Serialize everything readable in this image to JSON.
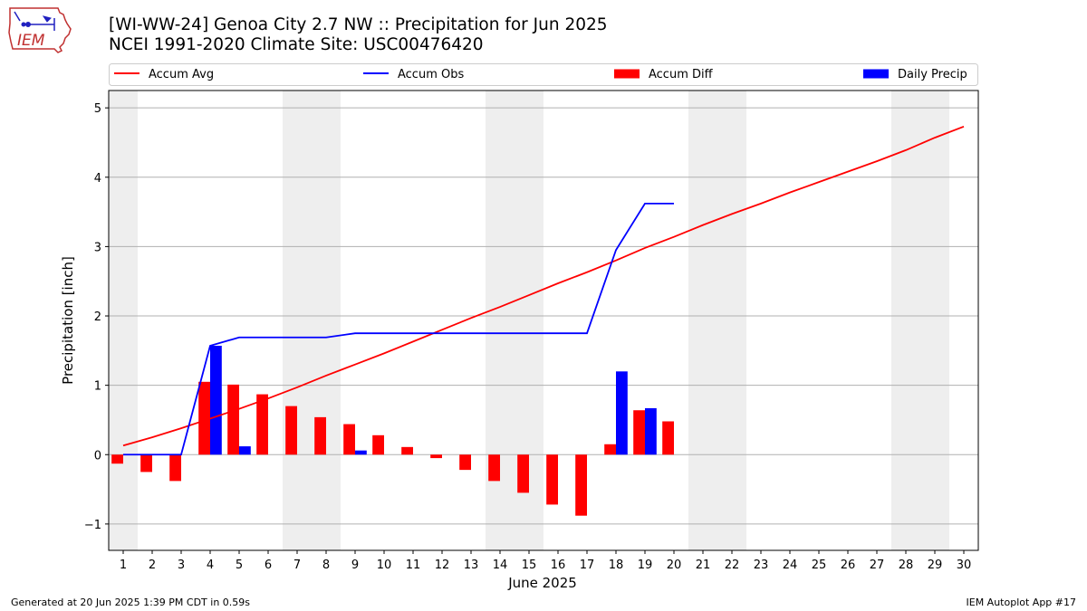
{
  "header": {
    "title": "[WI-WW-24] Genoa City 2.7 NW :: Precipitation for Jun 2025",
    "subtitle": "NCEI 1991-2020 Climate Site: USC00476420",
    "logo_text": "IEM"
  },
  "footer": {
    "generated": "Generated at 20 Jun 2025 1:39 PM CDT in 0.59s",
    "app": "IEM Autoplot App #17"
  },
  "colors": {
    "accum_avg": "#ff0000",
    "accum_obs": "#0000ff",
    "accum_diff": "#ff0000",
    "daily_precip": "#0000ff",
    "weekend_band": "#eeeeee",
    "grid": "#b0b0b0"
  },
  "chart_data": {
    "type": "bar",
    "xlabel": "June 2025",
    "ylabel": "Precipitation [inch]",
    "xlim": [
      1,
      30
    ],
    "ylim": [
      -1.38,
      5.25
    ],
    "yticks": [
      -1,
      0,
      1,
      2,
      3,
      4,
      5
    ],
    "ytick_labels": [
      "−1",
      "0",
      "1",
      "2",
      "3",
      "4",
      "5"
    ],
    "grid": "horizontal",
    "legend": {
      "placement": "top",
      "entries": [
        {
          "label": "Accum Avg",
          "kind": "line",
          "color": "#ff0000"
        },
        {
          "label": "Accum Obs",
          "kind": "line",
          "color": "#0000ff"
        },
        {
          "label": "Accum Diff",
          "kind": "bar",
          "color": "#ff0000"
        },
        {
          "label": "Daily Precip",
          "kind": "bar",
          "color": "#0000ff"
        }
      ]
    },
    "weekend_days": [
      1,
      7,
      8,
      14,
      15,
      21,
      22,
      28,
      29
    ],
    "days": [
      1,
      2,
      3,
      4,
      5,
      6,
      7,
      8,
      9,
      10,
      11,
      12,
      13,
      14,
      15,
      16,
      17,
      18,
      19,
      20,
      21,
      22,
      23,
      24,
      25,
      26,
      27,
      28,
      29,
      30
    ],
    "series": [
      {
        "name": "Accum Avg",
        "type": "line",
        "values": [
          0.13,
          0.25,
          0.38,
          0.52,
          0.66,
          0.81,
          0.97,
          1.14,
          1.3,
          1.46,
          1.63,
          1.8,
          1.97,
          2.13,
          2.3,
          2.47,
          2.63,
          2.8,
          2.98,
          3.14,
          3.31,
          3.47,
          3.62,
          3.78,
          3.93,
          4.08,
          4.23,
          4.39,
          4.57,
          4.73
        ]
      },
      {
        "name": "Accum Obs",
        "type": "line",
        "values": [
          0.0,
          0.0,
          0.0,
          1.57,
          1.69,
          1.69,
          1.69,
          1.69,
          1.75,
          1.75,
          1.75,
          1.75,
          1.75,
          1.75,
          1.75,
          1.75,
          1.75,
          2.95,
          3.62,
          3.62
        ]
      },
      {
        "name": "Accum Diff",
        "type": "bar",
        "values": [
          -0.13,
          -0.25,
          -0.38,
          1.05,
          1.01,
          0.87,
          0.7,
          0.54,
          0.44,
          0.28,
          0.11,
          -0.05,
          -0.22,
          -0.38,
          -0.55,
          -0.72,
          -0.88,
          0.15,
          0.64,
          0.48
        ]
      },
      {
        "name": "Daily Precip",
        "type": "bar",
        "values": [
          0,
          0,
          0,
          1.57,
          0.12,
          0,
          0,
          0,
          0.06,
          0,
          0,
          0,
          0,
          0,
          0,
          0,
          0,
          1.2,
          0.67,
          0
        ]
      }
    ]
  }
}
